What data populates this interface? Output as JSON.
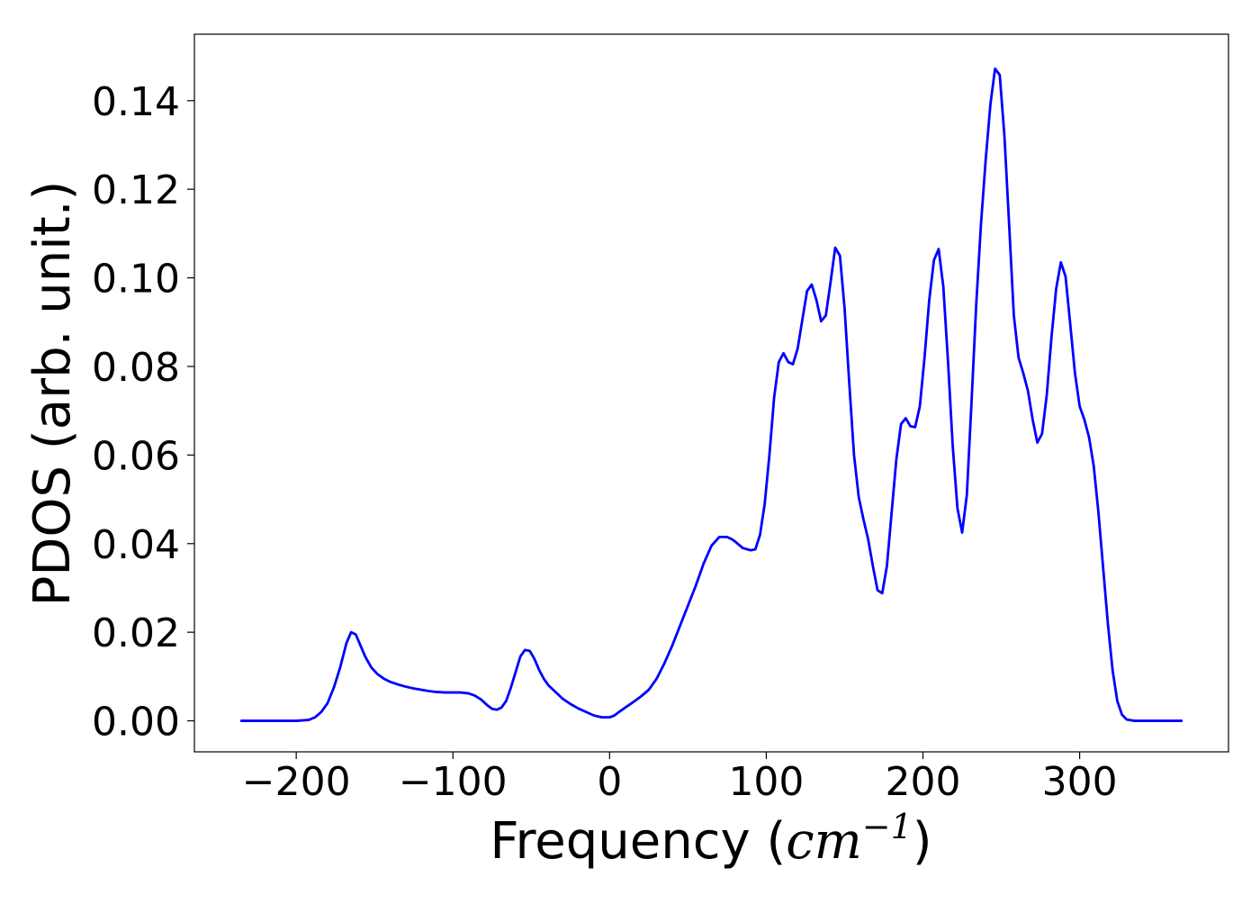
{
  "chart_data": {
    "type": "line",
    "title": "",
    "xlabel": "Frequency (cm^-1)",
    "xlabel_parts": {
      "prefix": "Frequency (",
      "unit_base": "cm",
      "unit_exponent": "−1",
      "suffix": ")"
    },
    "ylabel": "PDOS (arb. unit.)",
    "xlim": [
      -265,
      395
    ],
    "ylim": [
      -0.007,
      0.155
    ],
    "xticks": [
      -200,
      -100,
      0,
      100,
      200,
      300
    ],
    "xtick_labels": [
      "−200",
      "−100",
      "0",
      "100",
      "200",
      "300"
    ],
    "yticks": [
      0.0,
      0.02,
      0.04,
      0.06,
      0.08,
      0.1,
      0.12,
      0.14
    ],
    "ytick_labels": [
      "0.00",
      "0.02",
      "0.04",
      "0.06",
      "0.08",
      "0.10",
      "0.12",
      "0.14"
    ],
    "grid": false,
    "legend": "none",
    "series": [
      {
        "color": "#0000ff",
        "x": [
          -235,
          -200,
          -192,
          -188,
          -184,
          -180,
          -176,
          -172,
          -168,
          -165,
          -162,
          -159,
          -156,
          -152,
          -148,
          -144,
          -140,
          -135,
          -130,
          -125,
          -120,
          -115,
          -110,
          -105,
          -100,
          -95,
          -90,
          -86,
          -82,
          -78,
          -75,
          -72,
          -69,
          -66,
          -63,
          -60,
          -57,
          -54,
          -51,
          -48,
          -45,
          -42,
          -39,
          -36,
          -33,
          -30,
          -25,
          -20,
          -15,
          -10,
          -5,
          0,
          3,
          6,
          10,
          15,
          20,
          25,
          30,
          35,
          40,
          45,
          50,
          55,
          60,
          65,
          70,
          75,
          78,
          80,
          85,
          90,
          93,
          96,
          99,
          102,
          105,
          108,
          111,
          114,
          117,
          120,
          123,
          126,
          129,
          132,
          135,
          138,
          141,
          144,
          147,
          150,
          153,
          156,
          159,
          162,
          165,
          168,
          171,
          174,
          177,
          180,
          183,
          186,
          189,
          192,
          195,
          198,
          201,
          204,
          207,
          210,
          213,
          216,
          219,
          222,
          225,
          228,
          231,
          234,
          237,
          240,
          243,
          246,
          249,
          252,
          255,
          258,
          261,
          264,
          267,
          270,
          273,
          276,
          279,
          282,
          285,
          288,
          291,
          294,
          297,
          300,
          303,
          306,
          309,
          312,
          315,
          318,
          321,
          324,
          327,
          330,
          335,
          340,
          350,
          365
        ],
        "y": [
          0.0,
          0.0,
          0.0002,
          0.0008,
          0.002,
          0.004,
          0.0075,
          0.012,
          0.0175,
          0.02,
          0.0195,
          0.017,
          0.0145,
          0.012,
          0.0105,
          0.0095,
          0.0088,
          0.0082,
          0.0077,
          0.0073,
          0.007,
          0.0067,
          0.0065,
          0.0064,
          0.0064,
          0.0064,
          0.0062,
          0.0057,
          0.0048,
          0.0035,
          0.0027,
          0.0025,
          0.003,
          0.0045,
          0.0075,
          0.011,
          0.0145,
          0.016,
          0.0158,
          0.014,
          0.0115,
          0.0095,
          0.008,
          0.007,
          0.006,
          0.005,
          0.0038,
          0.0028,
          0.002,
          0.0012,
          0.0008,
          0.0008,
          0.0012,
          0.002,
          0.003,
          0.0042,
          0.0055,
          0.007,
          0.0095,
          0.013,
          0.017,
          0.0215,
          0.026,
          0.0305,
          0.0355,
          0.0395,
          0.0415,
          0.0415,
          0.041,
          0.0405,
          0.039,
          0.0385,
          0.0387,
          0.042,
          0.049,
          0.06,
          0.073,
          0.081,
          0.083,
          0.081,
          0.0805,
          0.084,
          0.0905,
          0.097,
          0.0985,
          0.095,
          0.0902,
          0.0915,
          0.099,
          0.1068,
          0.105,
          0.093,
          0.076,
          0.06,
          0.0505,
          0.0455,
          0.041,
          0.035,
          0.0295,
          0.0288,
          0.035,
          0.047,
          0.059,
          0.067,
          0.0683,
          0.0665,
          0.0663,
          0.071,
          0.082,
          0.095,
          0.104,
          0.1065,
          0.098,
          0.081,
          0.062,
          0.048,
          0.0425,
          0.051,
          0.072,
          0.094,
          0.112,
          0.1265,
          0.139,
          0.1472,
          0.1458,
          0.132,
          0.112,
          0.0915,
          0.082,
          0.0785,
          0.0745,
          0.068,
          0.0628,
          0.0648,
          0.0735,
          0.0865,
          0.0975,
          0.1035,
          0.1003,
          0.0895,
          0.0785,
          0.071,
          0.068,
          0.064,
          0.0575,
          0.047,
          0.0345,
          0.022,
          0.0115,
          0.0045,
          0.0014,
          0.0003,
          0.0,
          0.0,
          0.0,
          0.0
        ]
      }
    ]
  }
}
